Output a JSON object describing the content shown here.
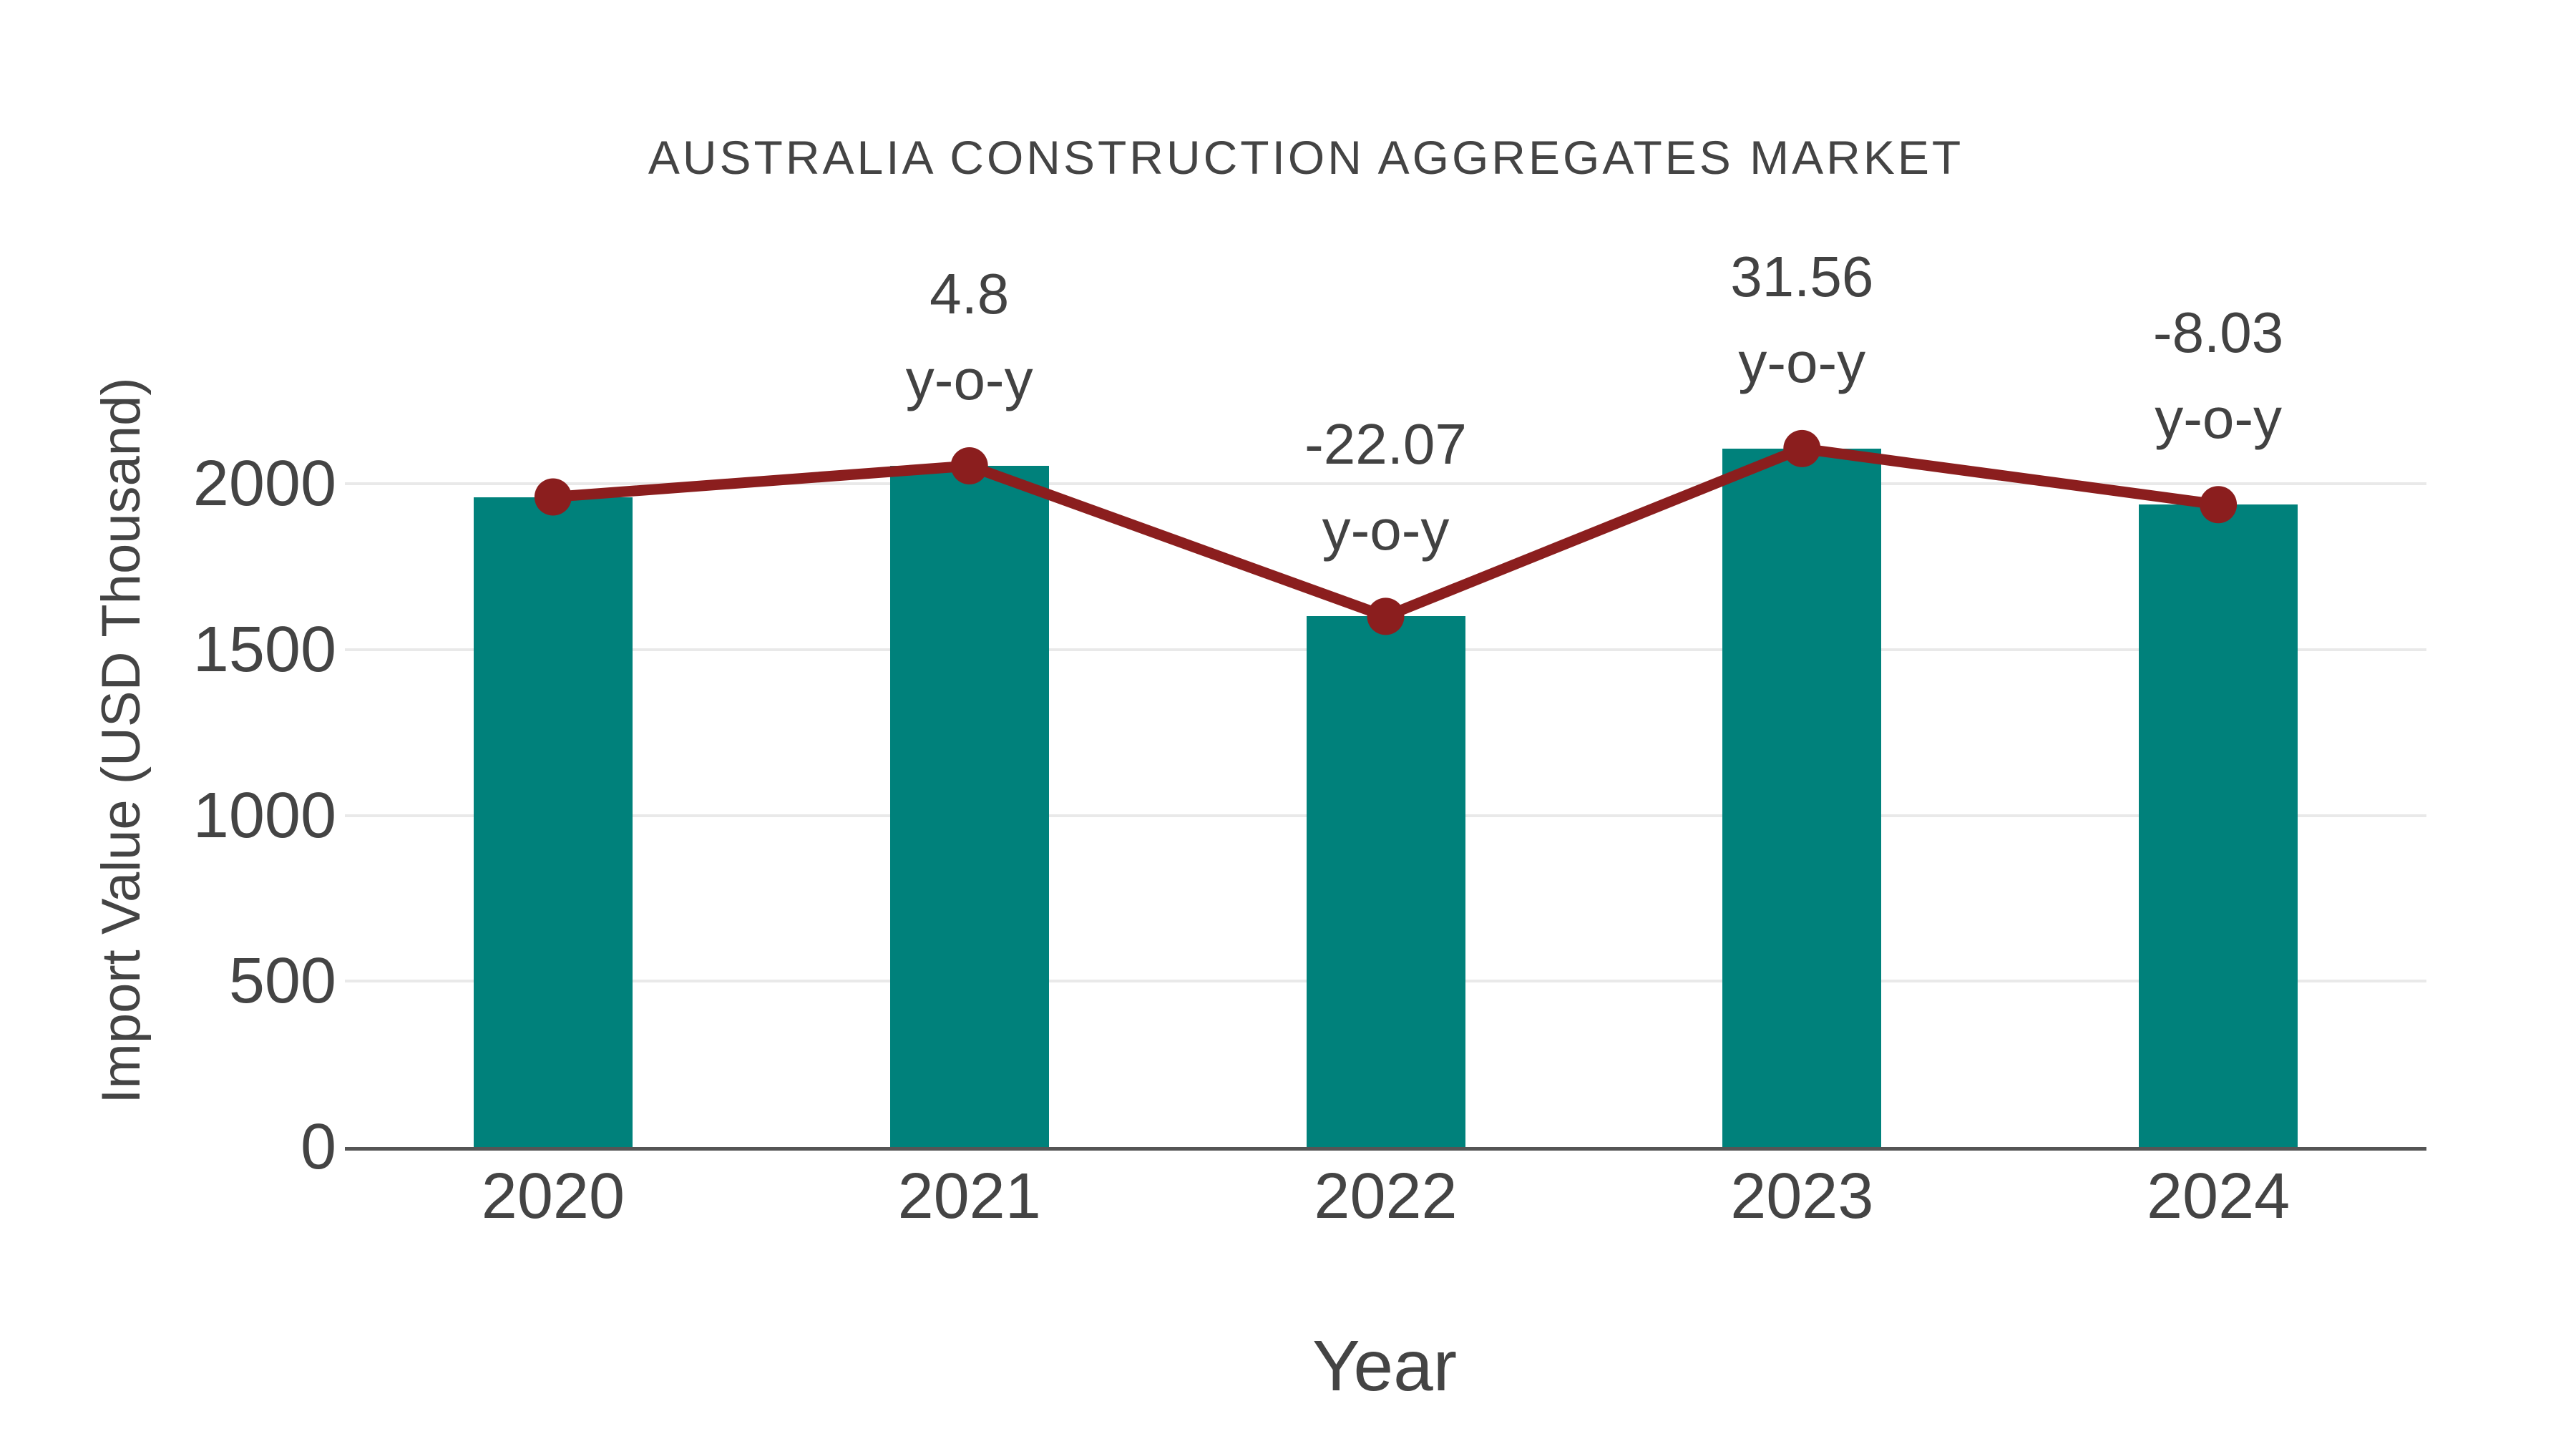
{
  "title": "AUSTRALIA CONSTRUCTION AGGREGATES MARKET",
  "chart_data": {
    "type": "bar",
    "title": "AUSTRALIA CONSTRUCTION AGGREGATES MARKET",
    "categories": [
      "2020",
      "2021",
      "2022",
      "2023",
      "2024"
    ],
    "series": [
      {
        "name": "Import Value (USD Thousand)",
        "type": "bar",
        "values": [
          1960,
          2054,
          1600,
          2106,
          1937
        ]
      },
      {
        "name": "y-o-y trend line",
        "type": "line",
        "values": [
          1960,
          2054,
          1600,
          2106,
          1937
        ]
      }
    ],
    "yoy_labels": [
      null,
      "4.8",
      "-22.07",
      "31.56",
      "-8.03"
    ],
    "yoy_suffix": "y-o-y",
    "xlabel": "Year",
    "ylabel": "Import Value (USD Thousand)",
    "yticks": [
      0,
      500,
      1000,
      1500,
      2000
    ],
    "ylim": [
      0,
      2216
    ],
    "grid": "horizontal-only",
    "legend": "none",
    "colors": {
      "bar": "#00817b",
      "line": "#8b1e1e",
      "marker": "#8b1e1e",
      "text": "#444444",
      "axis_line": "#555555",
      "gridline": "#e9e9e9",
      "background": "#ffffff"
    }
  }
}
